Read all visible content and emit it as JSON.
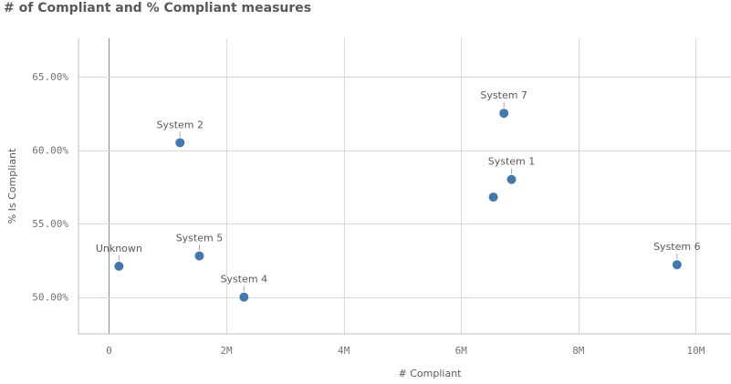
{
  "chart_data": {
    "type": "scatter",
    "title": "# of Compliant and % Compliant measures",
    "xlabel": "# Compliant",
    "ylabel": "% Is Compliant",
    "x_ticks": [
      {
        "value": 0,
        "label": "0"
      },
      {
        "value": 2000000,
        "label": "2M"
      },
      {
        "value": 4000000,
        "label": "4M"
      },
      {
        "value": 6000000,
        "label": "6M"
      },
      {
        "value": 8000000,
        "label": "8M"
      },
      {
        "value": 10000000,
        "label": "10M"
      }
    ],
    "y_ticks": [
      {
        "value": 50,
        "label": "50.00%"
      },
      {
        "value": 55,
        "label": "55.00%"
      },
      {
        "value": 60,
        "label": "60.00%"
      },
      {
        "value": 65,
        "label": "65.00%"
      }
    ],
    "xlim": [
      -520000,
      10600000
    ],
    "ylim": [
      47.5,
      67.6
    ],
    "grid": true,
    "point_color": "#4477aa",
    "points": [
      {
        "label": "Unknown",
        "x": 170000,
        "y": 52.1
      },
      {
        "label": "System 2",
        "x": 1210000,
        "y": 60.5
      },
      {
        "label": "System 5",
        "x": 1540000,
        "y": 52.8
      },
      {
        "label": "System 4",
        "x": 2300000,
        "y": 50.0
      },
      {
        "label": "System 7",
        "x": 6730000,
        "y": 62.5
      },
      {
        "label": "System 1",
        "x": 6860000,
        "y": 58.0
      },
      {
        "label": "",
        "x": 6550000,
        "y": 56.8
      },
      {
        "label": "System 6",
        "x": 9680000,
        "y": 52.2
      }
    ]
  }
}
